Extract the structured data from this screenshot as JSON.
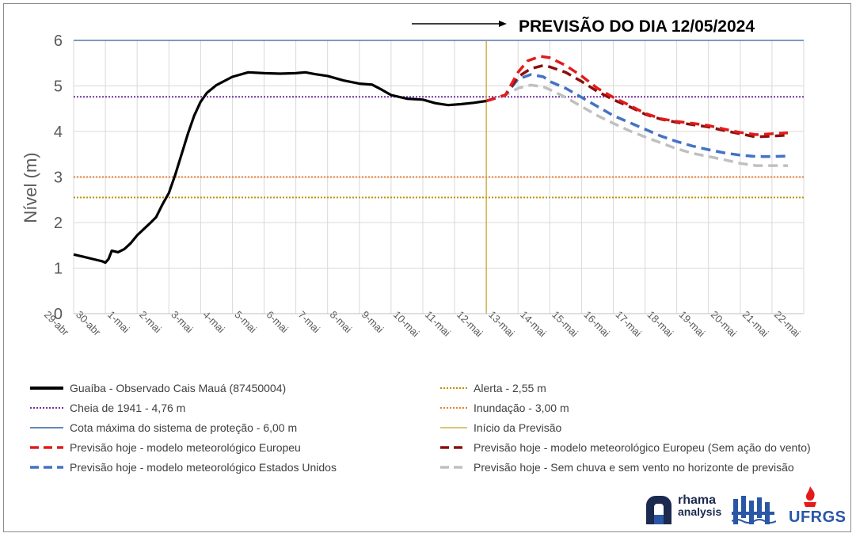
{
  "chart_data": {
    "type": "line",
    "title": "PREVISÃO DO DIA 12/05/2024",
    "ylabel": "Nível (m)",
    "xlabel": "",
    "ylim": [
      0,
      6
    ],
    "yticks": [
      0,
      1,
      2,
      3,
      4,
      5,
      6
    ],
    "grid": true,
    "legend_position": "bottom",
    "x_categories": [
      "29-abr",
      "30-abr",
      "1-mai",
      "2-mai",
      "3-mai",
      "4-mai",
      "5-mai",
      "6-mai",
      "7-mai",
      "8-mai",
      "9-mai",
      "10-mai",
      "11-mai",
      "12-mai",
      "13-mai",
      "14-mai",
      "15-mai",
      "16-mai",
      "17-mai",
      "18-mai",
      "19-mai",
      "20-mai",
      "21-mai",
      "22-mai"
    ],
    "series": [
      {
        "name": "Guaíba - Observado Cais Mauá (87450004)",
        "color": "#000000",
        "style": "solid",
        "points": [
          [
            0,
            1.3
          ],
          [
            0.3,
            1.25
          ],
          [
            0.6,
            1.2
          ],
          [
            0.9,
            1.15
          ],
          [
            1.0,
            1.12
          ],
          [
            1.1,
            1.2
          ],
          [
            1.2,
            1.38
          ],
          [
            1.4,
            1.35
          ],
          [
            1.6,
            1.42
          ],
          [
            1.8,
            1.55
          ],
          [
            2.0,
            1.72
          ],
          [
            2.2,
            1.85
          ],
          [
            2.4,
            1.98
          ],
          [
            2.6,
            2.12
          ],
          [
            2.8,
            2.4
          ],
          [
            3.0,
            2.65
          ],
          [
            3.2,
            3.05
          ],
          [
            3.4,
            3.5
          ],
          [
            3.6,
            3.95
          ],
          [
            3.8,
            4.35
          ],
          [
            4.0,
            4.65
          ],
          [
            4.2,
            4.85
          ],
          [
            4.5,
            5.02
          ],
          [
            5.0,
            5.2
          ],
          [
            5.5,
            5.3
          ],
          [
            6.0,
            5.28
          ],
          [
            6.5,
            5.27
          ],
          [
            7.0,
            5.28
          ],
          [
            7.3,
            5.3
          ],
          [
            7.6,
            5.26
          ],
          [
            8.0,
            5.22
          ],
          [
            8.5,
            5.12
          ],
          [
            9.0,
            5.05
          ],
          [
            9.4,
            5.03
          ],
          [
            9.7,
            4.92
          ],
          [
            10.0,
            4.8
          ],
          [
            10.5,
            4.72
          ],
          [
            11.0,
            4.7
          ],
          [
            11.4,
            4.62
          ],
          [
            11.8,
            4.58
          ],
          [
            12.2,
            4.6
          ],
          [
            12.6,
            4.63
          ],
          [
            13.0,
            4.67
          ]
        ]
      },
      {
        "name": "Previsão hoje - modelo meteorológico Europeu",
        "color": "#e31b1b",
        "style": "dash",
        "points": [
          [
            13.0,
            4.67
          ],
          [
            13.6,
            4.8
          ],
          [
            14.0,
            5.3
          ],
          [
            14.3,
            5.55
          ],
          [
            14.7,
            5.65
          ],
          [
            15.0,
            5.62
          ],
          [
            15.5,
            5.45
          ],
          [
            16.0,
            5.22
          ],
          [
            16.5,
            4.95
          ],
          [
            17.0,
            4.75
          ],
          [
            17.5,
            4.58
          ],
          [
            18.0,
            4.4
          ],
          [
            18.5,
            4.28
          ],
          [
            19.0,
            4.22
          ],
          [
            19.5,
            4.18
          ],
          [
            20.0,
            4.13
          ],
          [
            20.5,
            4.05
          ],
          [
            21.0,
            3.98
          ],
          [
            21.5,
            3.93
          ],
          [
            22.0,
            3.95
          ],
          [
            22.5,
            3.97
          ]
        ]
      },
      {
        "name": "Previsão hoje - modelo meteorológico Europeu (Sem ação do vento)",
        "color": "#8b0f0f",
        "style": "dash",
        "points": [
          [
            13.0,
            4.67
          ],
          [
            13.6,
            4.8
          ],
          [
            14.0,
            5.2
          ],
          [
            14.4,
            5.38
          ],
          [
            14.8,
            5.45
          ],
          [
            15.0,
            5.42
          ],
          [
            15.5,
            5.3
          ],
          [
            16.0,
            5.1
          ],
          [
            16.5,
            4.88
          ],
          [
            17.0,
            4.7
          ],
          [
            17.5,
            4.55
          ],
          [
            18.0,
            4.38
          ],
          [
            18.5,
            4.27
          ],
          [
            19.0,
            4.2
          ],
          [
            19.5,
            4.15
          ],
          [
            20.0,
            4.1
          ],
          [
            20.5,
            4.02
          ],
          [
            21.0,
            3.95
          ],
          [
            21.5,
            3.88
          ],
          [
            22.0,
            3.9
          ],
          [
            22.5,
            3.92
          ]
        ]
      },
      {
        "name": "Previsão hoje - modelo meteorológico Estados Unidos",
        "color": "#4472c4",
        "style": "dash",
        "points": [
          [
            13.0,
            4.67
          ],
          [
            13.6,
            4.8
          ],
          [
            14.0,
            5.15
          ],
          [
            14.4,
            5.25
          ],
          [
            14.8,
            5.2
          ],
          [
            15.0,
            5.1
          ],
          [
            15.5,
            4.95
          ],
          [
            16.0,
            4.75
          ],
          [
            16.5,
            4.55
          ],
          [
            17.0,
            4.35
          ],
          [
            17.5,
            4.2
          ],
          [
            18.0,
            4.05
          ],
          [
            18.5,
            3.9
          ],
          [
            19.0,
            3.78
          ],
          [
            19.5,
            3.68
          ],
          [
            20.0,
            3.6
          ],
          [
            20.5,
            3.53
          ],
          [
            21.0,
            3.48
          ],
          [
            21.5,
            3.45
          ],
          [
            22.0,
            3.45
          ],
          [
            22.5,
            3.46
          ]
        ]
      },
      {
        "name": "Previsão hoje - Sem chuva e sem vento no horizonte de previsão",
        "color": "#c0c0c0",
        "style": "dash",
        "points": [
          [
            13.0,
            4.67
          ],
          [
            13.6,
            4.8
          ],
          [
            14.0,
            4.95
          ],
          [
            14.4,
            5.02
          ],
          [
            14.8,
            4.98
          ],
          [
            15.0,
            4.92
          ],
          [
            15.5,
            4.75
          ],
          [
            16.0,
            4.55
          ],
          [
            16.5,
            4.35
          ],
          [
            17.0,
            4.18
          ],
          [
            17.5,
            4.02
          ],
          [
            18.0,
            3.88
          ],
          [
            18.5,
            3.75
          ],
          [
            19.0,
            3.62
          ],
          [
            19.5,
            3.52
          ],
          [
            20.0,
            3.45
          ],
          [
            20.5,
            3.38
          ],
          [
            21.0,
            3.3
          ],
          [
            21.5,
            3.25
          ],
          [
            22.0,
            3.25
          ],
          [
            22.5,
            3.25
          ]
        ]
      }
    ],
    "reference_lines": [
      {
        "name": "Alerta  - 2,55 m",
        "value": 2.55,
        "color": "#bf9000",
        "style": "dot"
      },
      {
        "name": "Cheia de 1941 - 4,76 m",
        "value": 4.76,
        "color": "#7030a0",
        "style": "dot"
      },
      {
        "name": "Inundação - 3,00 m",
        "value": 3.0,
        "color": "#ed7d31",
        "style": "dot"
      },
      {
        "name": "Cota máxima do sistema de proteção - 6,00 m",
        "value": 6.0,
        "color": "#2e5fa3",
        "style": "solid"
      }
    ],
    "vertical_lines": [
      {
        "name": "Início da Previsão",
        "x": 13.0,
        "color": "#c9a227",
        "style": "solid"
      }
    ]
  },
  "logos": {
    "rhama_line1": "rhama",
    "rhama_line2": "analysis",
    "ufrgs": "UFRGS"
  }
}
